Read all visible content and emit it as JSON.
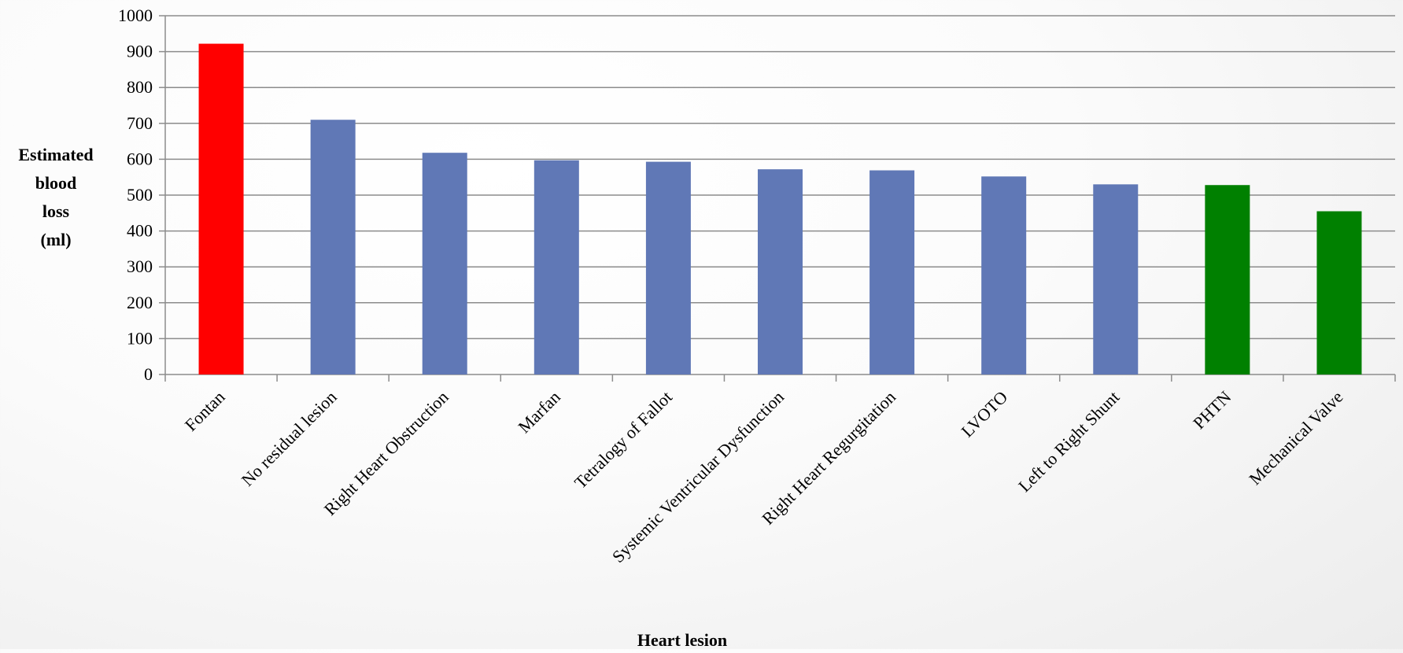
{
  "chart_data": {
    "type": "bar",
    "title": "",
    "xlabel": "Heart lesion",
    "ylabel_lines": [
      "Estimated",
      "blood",
      "loss",
      "(ml)"
    ],
    "ylim": [
      0,
      1000
    ],
    "yticks": [
      0,
      100,
      200,
      300,
      400,
      500,
      600,
      700,
      800,
      900,
      1000
    ],
    "grid": true,
    "legend": "none",
    "categories": [
      "Fontan",
      "No residual lesion",
      "Right Heart Obstruction",
      "Marfan",
      "Tetralogy of Fallot",
      "Systemic Ventricular Dysfunction",
      "Right Heart Regurgitation",
      "LVOTO",
      "Left to Right Shunt",
      "PHTN",
      "Mechanical Valve"
    ],
    "values": [
      922,
      710,
      618,
      597,
      593,
      572,
      569,
      552,
      530,
      528,
      455
    ],
    "bar_colors": [
      "#ff0000",
      "#6078b6",
      "#6078b6",
      "#6078b6",
      "#6078b6",
      "#6078b6",
      "#6078b6",
      "#6078b6",
      "#6078b6",
      "#008000",
      "#008000"
    ]
  }
}
